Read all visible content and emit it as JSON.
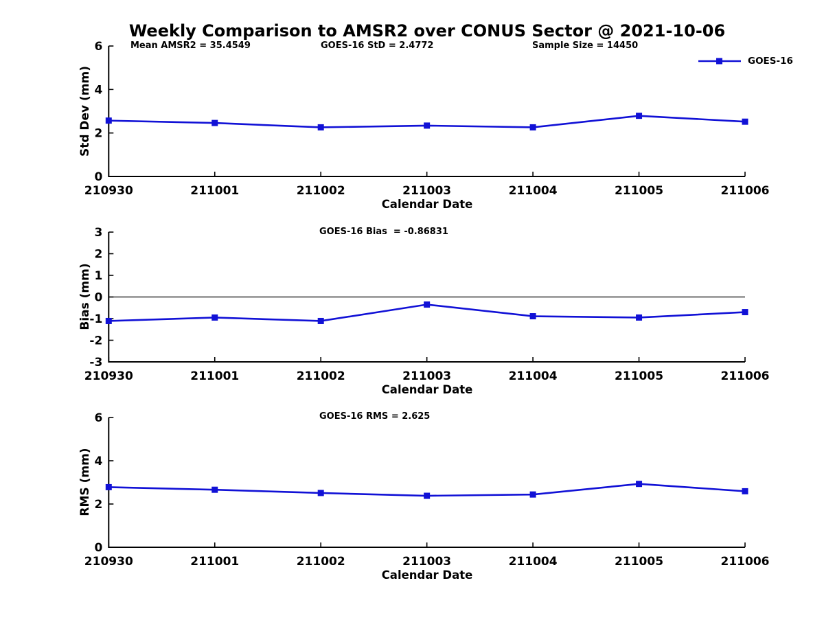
{
  "title": "Weekly Comparison to AMSR2 over CONUS Sector @ 2021-10-06",
  "header_stats": [
    {
      "label": "Mean AMSR2 = 35.4549"
    },
    {
      "label": "GOES-16 StD = 2.4772"
    },
    {
      "label": "Sample Size = 14450"
    }
  ],
  "legend": {
    "label": "GOES-16",
    "color": "#1111d6",
    "marker": "filled-square",
    "position": "top-right"
  },
  "chart_data": [
    {
      "type": "line",
      "ylabel": "Std Dev (mm)",
      "xlabel": "Calendar Date",
      "categories": [
        "210930",
        "211001",
        "211002",
        "211003",
        "211004",
        "211005",
        "211006"
      ],
      "series": [
        {
          "name": "GOES-16",
          "values": [
            2.57,
            2.46,
            2.26,
            2.34,
            2.26,
            2.79,
            2.52
          ]
        }
      ],
      "ylim": [
        0,
        6
      ],
      "yticks": [
        0,
        2,
        4,
        6
      ],
      "zero_line": false,
      "annotation": "",
      "grid": false
    },
    {
      "type": "line",
      "ylabel": "Bias (mm)",
      "xlabel": "Calendar Date",
      "categories": [
        "210930",
        "211001",
        "211002",
        "211003",
        "211004",
        "211005",
        "211006"
      ],
      "series": [
        {
          "name": "GOES-16",
          "values": [
            -1.11,
            -0.95,
            -1.11,
            -0.35,
            -0.89,
            -0.95,
            -0.7
          ]
        }
      ],
      "ylim": [
        -3,
        3
      ],
      "yticks": [
        -3,
        -2,
        -1,
        0,
        1,
        2,
        3
      ],
      "zero_line": true,
      "annotation": "GOES-16 Bias  = -0.86831",
      "grid": false
    },
    {
      "type": "line",
      "ylabel": "RMS (mm)",
      "xlabel": "Calendar Date",
      "categories": [
        "210930",
        "211001",
        "211002",
        "211003",
        "211004",
        "211005",
        "211006"
      ],
      "series": [
        {
          "name": "GOES-16",
          "values": [
            2.78,
            2.66,
            2.51,
            2.38,
            2.44,
            2.93,
            2.59
          ]
        }
      ],
      "ylim": [
        0,
        6
      ],
      "yticks": [
        0,
        2,
        4,
        6
      ],
      "zero_line": false,
      "annotation": "GOES-16 RMS = 2.625",
      "grid": false
    }
  ]
}
